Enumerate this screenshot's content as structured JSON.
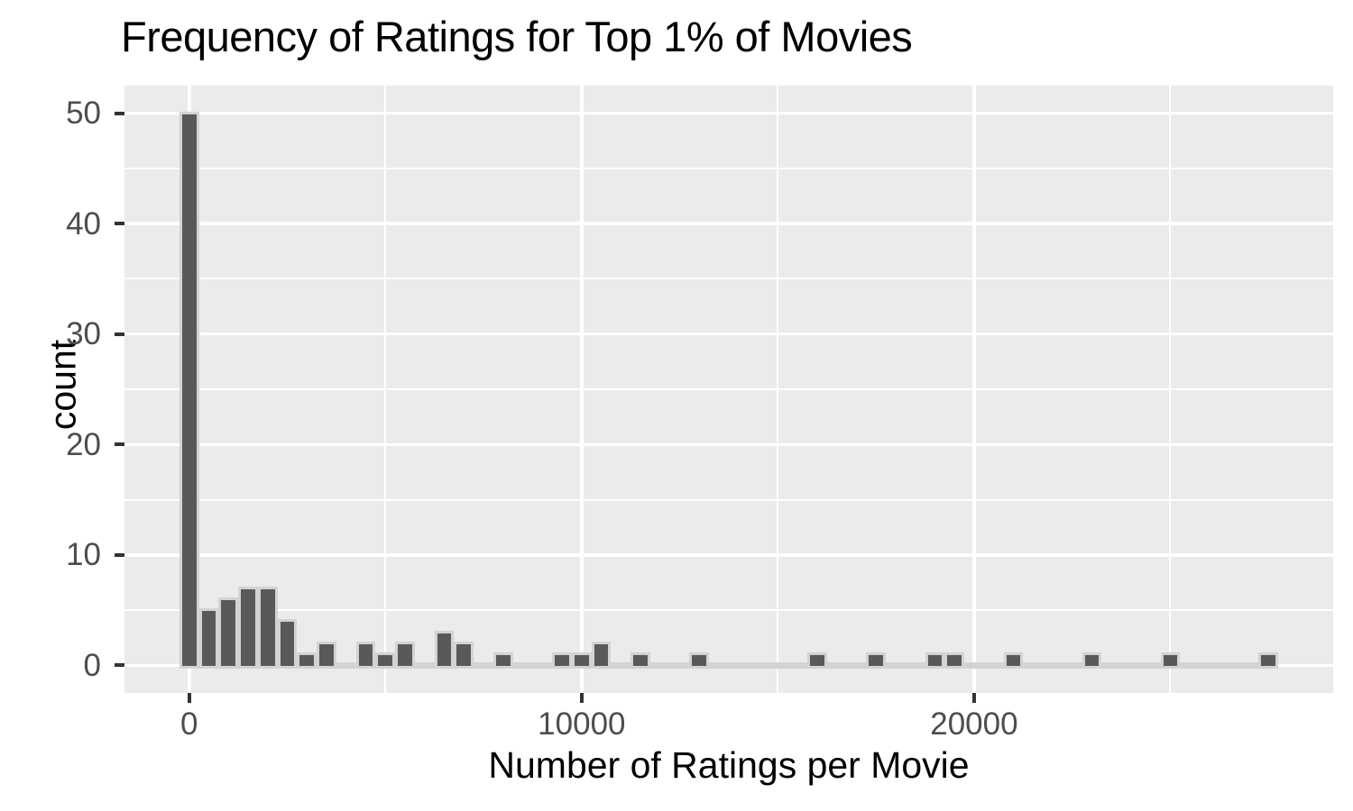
{
  "chart_data": {
    "type": "bar",
    "subtype": "histogram",
    "title": "Frequency of Ratings for Top 1% of Movies",
    "xlabel": "Number of Ratings per Movie",
    "ylabel": "count",
    "bin_width": 500,
    "bins": [
      {
        "center": 0,
        "count": 50
      },
      {
        "center": 500,
        "count": 5
      },
      {
        "center": 1000,
        "count": 6
      },
      {
        "center": 1500,
        "count": 7
      },
      {
        "center": 2000,
        "count": 7
      },
      {
        "center": 2500,
        "count": 4
      },
      {
        "center": 3000,
        "count": 1
      },
      {
        "center": 3500,
        "count": 2
      },
      {
        "center": 4500,
        "count": 2
      },
      {
        "center": 5000,
        "count": 1
      },
      {
        "center": 5500,
        "count": 2
      },
      {
        "center": 6500,
        "count": 3
      },
      {
        "center": 7000,
        "count": 2
      },
      {
        "center": 8000,
        "count": 1
      },
      {
        "center": 9500,
        "count": 1
      },
      {
        "center": 10000,
        "count": 1
      },
      {
        "center": 10500,
        "count": 2
      },
      {
        "center": 11500,
        "count": 1
      },
      {
        "center": 13000,
        "count": 1
      },
      {
        "center": 16000,
        "count": 1
      },
      {
        "center": 17500,
        "count": 1
      },
      {
        "center": 19000,
        "count": 1
      },
      {
        "center": 19500,
        "count": 1
      },
      {
        "center": 21000,
        "count": 1
      },
      {
        "center": 23000,
        "count": 1
      },
      {
        "center": 25000,
        "count": 1
      },
      {
        "center": 27500,
        "count": 1
      }
    ],
    "x_ticks": [
      {
        "value": 0,
        "label": "0"
      },
      {
        "value": 10000,
        "label": "10000"
      },
      {
        "value": 20000,
        "label": "20000"
      }
    ],
    "x_minor_ticks": [
      5000,
      15000,
      25000
    ],
    "y_ticks": [
      {
        "value": 0,
        "label": "0"
      },
      {
        "value": 10,
        "label": "10"
      },
      {
        "value": 20,
        "label": "20"
      },
      {
        "value": 30,
        "label": "30"
      },
      {
        "value": 40,
        "label": "40"
      },
      {
        "value": 50,
        "label": "50"
      }
    ],
    "y_minor_ticks": [
      5,
      15,
      25,
      35,
      45
    ],
    "xlim": [
      -1650,
      29150
    ],
    "ylim": [
      -2.5,
      52.5
    ],
    "grid": {
      "major": true,
      "minor": true
    },
    "legend": "none",
    "colors": {
      "bar_fill": "#595959",
      "bar_border": "#D3D3D3",
      "panel_bg": "#EBEBEB",
      "grid": "#FFFFFF",
      "tick": "#333333",
      "tick_label": "#4D4D4D",
      "text": "#000000",
      "background": "#FFFFFF"
    }
  }
}
